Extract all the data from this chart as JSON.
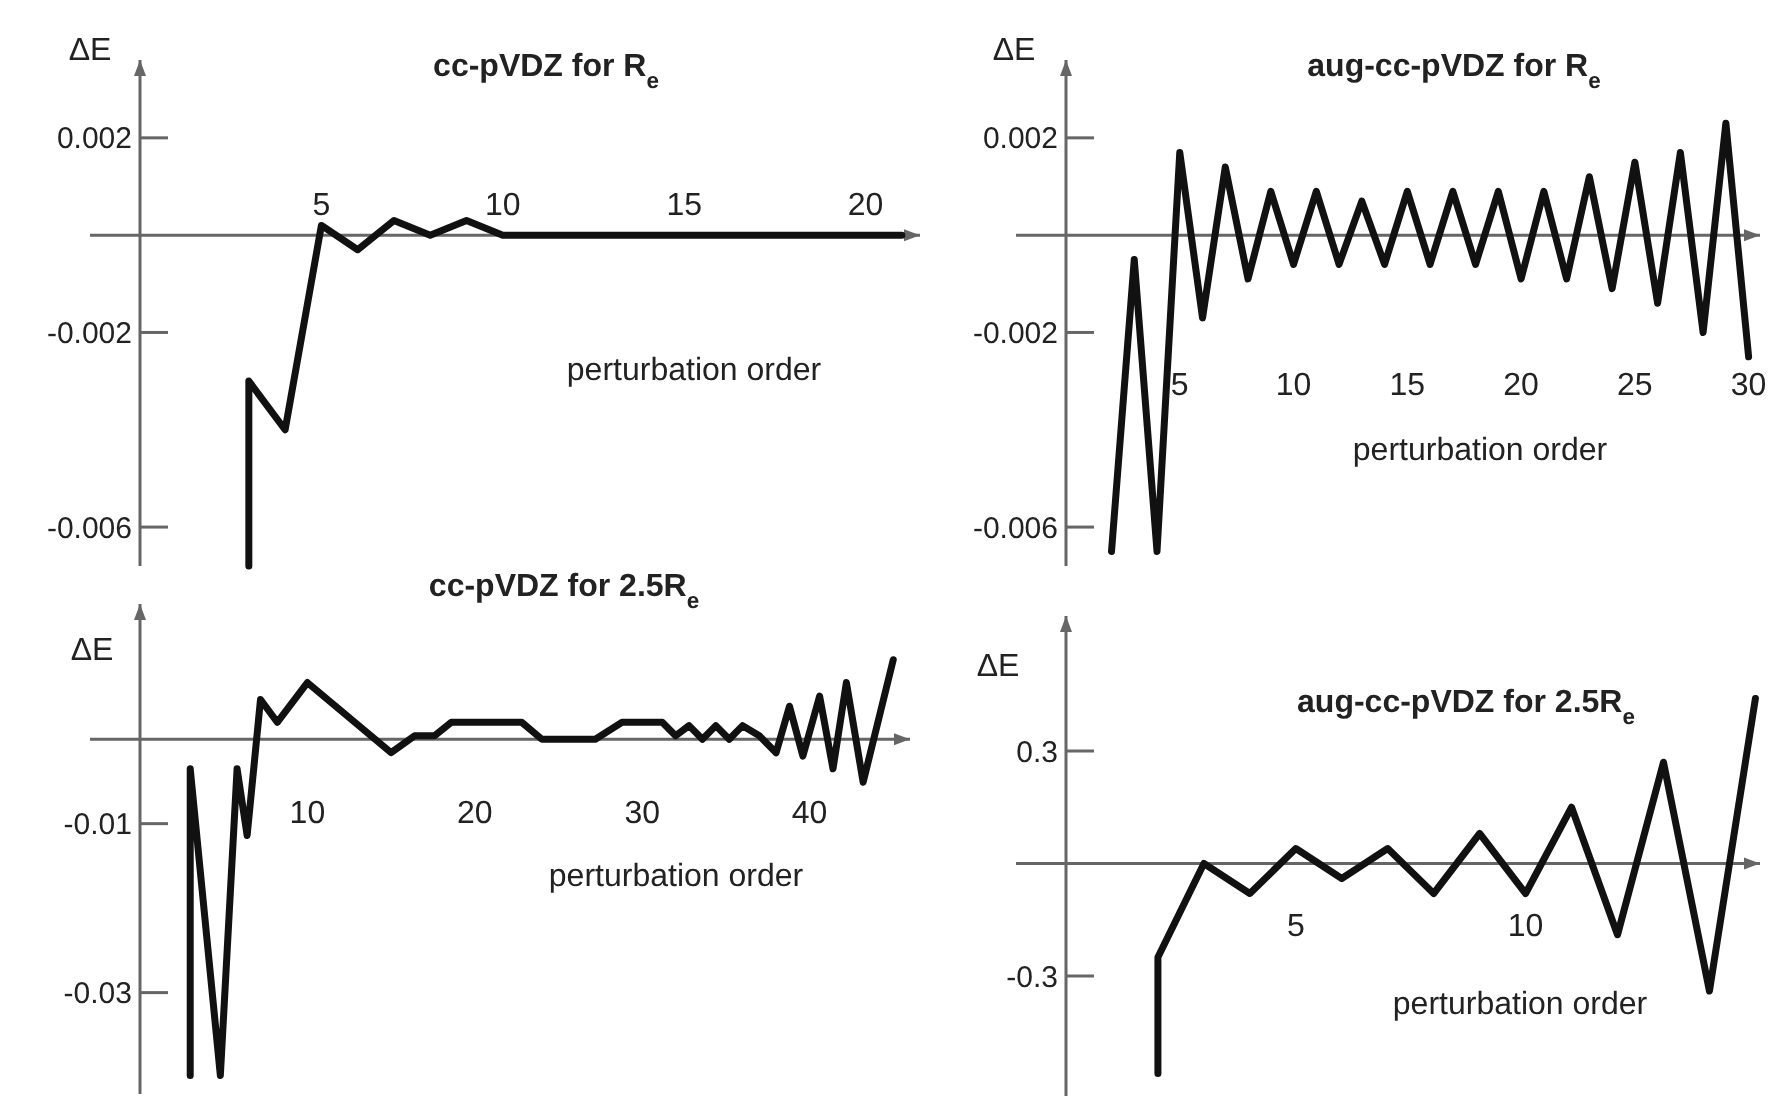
{
  "chart_data": [
    {
      "type": "line",
      "title": "cc-pVDZ for R$_{e}$",
      "xlabel": "perturbation order",
      "ylabel": "ΔE",
      "xlim": [
        0,
        21.5
      ],
      "ylim": [
        -0.0068,
        0.0036
      ],
      "xticks": [
        5,
        10,
        15,
        20
      ],
      "yticks": [
        0.002,
        -0.002,
        -0.006
      ],
      "x": [
        3,
        3,
        4,
        5,
        6,
        7,
        8,
        9,
        10,
        21
      ],
      "series": [
        {
          "color": "#111111",
          "values": [
            -0.0068,
            -0.003,
            -0.004,
            0.0002,
            -0.0003,
            0.0003,
            0.0,
            0.0003,
            0.0,
            0.0
          ]
        }
      ]
    },
    {
      "type": "line",
      "title": "aug-cc-pVDZ for R$_{e}$",
      "xlabel": "perturbation order",
      "ylabel": "ΔE",
      "xlim": [
        0,
        30.5
      ],
      "ylim": [
        -0.0068,
        0.0036
      ],
      "xticks": [
        5,
        10,
        15,
        20,
        25,
        30
      ],
      "yticks": [
        0.002,
        -0.002,
        -0.006
      ],
      "x": [
        2,
        3,
        4,
        5,
        6,
        7,
        8,
        9,
        10,
        11,
        12,
        13,
        14,
        15,
        16,
        17,
        18,
        19,
        20,
        21,
        22,
        23,
        24,
        25,
        26,
        27,
        28,
        29,
        30
      ],
      "series": [
        {
          "color": "#111111",
          "values": [
            -0.0065,
            -0.0005,
            -0.0065,
            0.0017,
            -0.0017,
            0.0014,
            -0.0009,
            0.0009,
            -0.0006,
            0.0009,
            -0.0006,
            0.0007,
            -0.0006,
            0.0009,
            -0.0006,
            0.0009,
            -0.0006,
            0.0009,
            -0.0009,
            0.0009,
            -0.0009,
            0.0012,
            -0.0011,
            0.0015,
            -0.0014,
            0.0017,
            -0.002,
            0.0023,
            -0.0025
          ]
        }
      ]
    },
    {
      "type": "line",
      "title": "cc-pVDZ for 2.5R$_{e}$",
      "xlabel": "perturbation order",
      "ylabel": "ΔE",
      "xlim": [
        0,
        46
      ],
      "ylim": [
        -0.042,
        0.016
      ],
      "xticks": [
        10,
        20,
        30,
        40
      ],
      "yticks": [
        -0.01,
        -0.03
      ],
      "x": [
        3,
        3,
        4.8,
        5.8,
        6.4,
        7.2,
        8.2,
        10,
        15,
        16.4,
        17.6,
        18.6,
        22.8,
        24,
        27.2,
        28.8,
        31.2,
        32,
        32.8,
        33.6,
        34.4,
        35.2,
        36,
        37,
        38,
        38.8,
        39.6,
        40.6,
        41.4,
        42.2,
        43.2,
        45
      ],
      "series": [
        {
          "color": "#111111",
          "values": [
            -0.0398,
            -0.0035,
            -0.0398,
            -0.0035,
            -0.0114,
            0.0047,
            0.002,
            0.0067,
            -0.0016,
            0.0004,
            0.0004,
            0.002,
            0.002,
            0,
            0,
            0.002,
            0.002,
            0.0004,
            0.0016,
            0,
            0.0016,
            0,
            0.0016,
            0.0004,
            -0.0016,
            0.0039,
            -0.002,
            0.0051,
            -0.0035,
            0.0067,
            -0.0051,
            0.0094
          ]
        }
      ]
    },
    {
      "type": "line",
      "title": "aug-cc-pVDZ for 2.5R$_{e}$",
      "xlabel": "perturbation order",
      "ylabel": "ΔE",
      "xlim": [
        0,
        15.1
      ],
      "ylim": [
        -0.62,
        0.66
      ],
      "xticks": [
        5,
        10
      ],
      "yticks": [
        0.3,
        -0.3
      ],
      "x": [
        2,
        2,
        3,
        4,
        5,
        6,
        7,
        8,
        9,
        10,
        11,
        12,
        13,
        14,
        15
      ],
      "series": [
        {
          "color": "#111111",
          "values": [
            -0.56,
            -0.25,
            0,
            -0.08,
            0.04,
            -0.04,
            0.04,
            -0.08,
            0.08,
            -0.08,
            0.15,
            -0.19,
            0.27,
            -0.34,
            0.44
          ]
        }
      ]
    }
  ]
}
